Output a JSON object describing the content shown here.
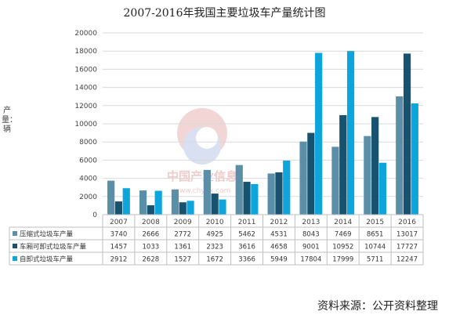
{
  "chart_data": {
    "type": "bar",
    "title": "2007-2016年我国主要垃圾车产量统计图",
    "ylabel": "产量：辆",
    "ylim": [
      0,
      20000
    ],
    "yticks": [
      0,
      2000,
      4000,
      6000,
      8000,
      10000,
      12000,
      14000,
      16000,
      18000,
      20000
    ],
    "grid": true,
    "legend": "data-table-bottom",
    "categories": [
      "2007",
      "2008",
      "2009",
      "2010",
      "2011",
      "2012",
      "2013",
      "2014",
      "2015",
      "2016"
    ],
    "series": [
      {
        "name": "压缩式垃圾车产量",
        "color": "#5b8fa8",
        "values": [
          3740,
          2666,
          2772,
          4925,
          5462,
          4531,
          8043,
          7469,
          8651,
          13017
        ]
      },
      {
        "name": "车厢可卸式垃圾车产量",
        "color": "#17536e",
        "values": [
          1457,
          1033,
          1361,
          2323,
          3616,
          4658,
          9001,
          10952,
          10744,
          17727
        ]
      },
      {
        "name": "自卸式垃圾车产量",
        "color": "#0ea5dc",
        "values": [
          2912,
          2628,
          1527,
          1672,
          3366,
          5949,
          17804,
          17999,
          5711,
          12247
        ]
      }
    ]
  },
  "source": "资料来源：公开资料整理",
  "watermark": {
    "text_cn": "中国产业信息",
    "text_url": "www.chyxx.com"
  }
}
